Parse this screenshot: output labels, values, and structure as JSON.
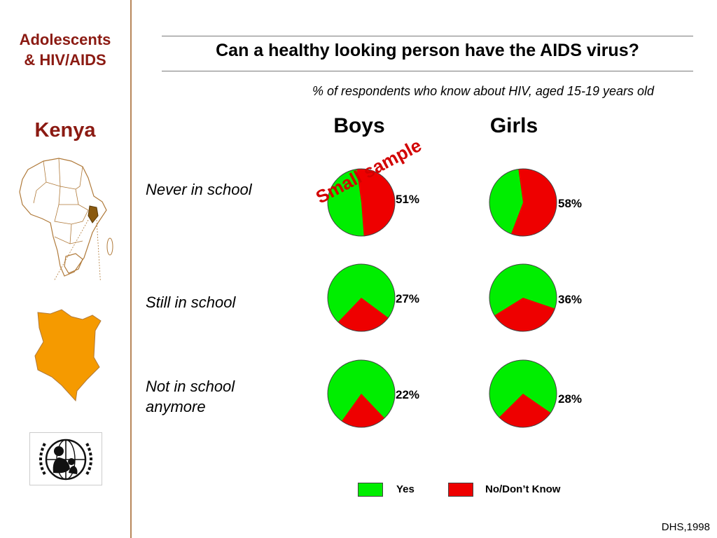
{
  "sidebar": {
    "title_lines": [
      "Adolescents",
      "& HIV/AIDS"
    ],
    "country": "Kenya"
  },
  "header": {
    "title": "Can a healthy looking person have the AIDS virus?",
    "subtitle": "% of respondents who know about HIV,  aged 15-19 years old"
  },
  "annotation": "Small sample",
  "source": "DHS,1998",
  "colors": {
    "yes": "#00ee00",
    "no": "#ee0000",
    "sidebar_text": "#8b1a12",
    "map_fill": "#f59a00"
  },
  "chart_data": {
    "type": "pie",
    "columns": [
      "Boys",
      "Girls"
    ],
    "rows": [
      "Never in school",
      "Still in school",
      "Not in school anymore"
    ],
    "legend": [
      "Yes",
      "No/Don’t Know"
    ],
    "value_meaning": "No/Don’t Know (%)",
    "pies": [
      {
        "row": "Never in school",
        "column": "Boys",
        "no": 51,
        "label": "51%"
      },
      {
        "row": "Never in school",
        "column": "Girls",
        "no": 58,
        "label": "58%"
      },
      {
        "row": "Still in school",
        "column": "Boys",
        "no": 27,
        "label": "27%"
      },
      {
        "row": "Still in school",
        "column": "Girls",
        "no": 36,
        "label": "36%"
      },
      {
        "row": "Not in school anymore",
        "column": "Boys",
        "no": 22,
        "label": "22%"
      },
      {
        "row": "Not in school anymore",
        "column": "Girls",
        "no": 28,
        "label": "28%"
      }
    ],
    "legend_placement": "bottom"
  }
}
